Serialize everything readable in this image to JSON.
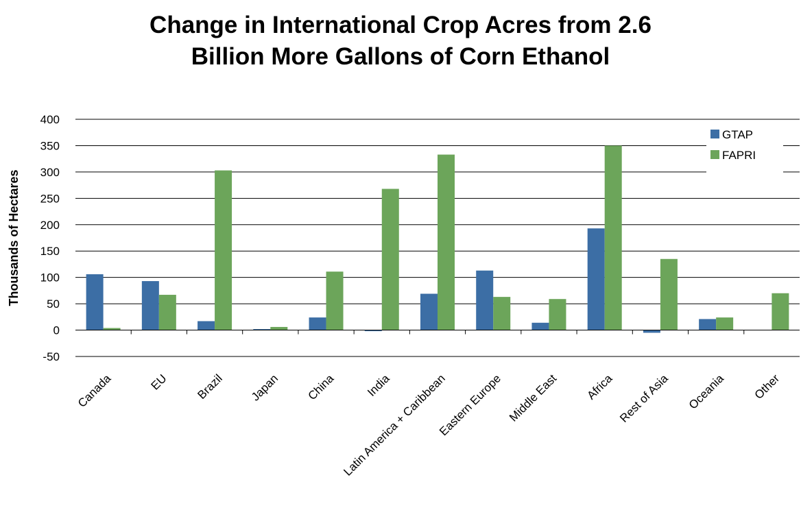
{
  "chart_data": {
    "type": "bar",
    "title_lines": [
      "Change in International Crop Acres from 2.6",
      "Billion More Gallons of Corn Ethanol"
    ],
    "ylabel": "Thousands of Hectares",
    "xlabel": "",
    "ylim": [
      -50,
      400
    ],
    "yticks": [
      400,
      350,
      300,
      250,
      200,
      150,
      100,
      50,
      0,
      -50
    ],
    "grid": true,
    "legend_position": "top-right",
    "categories": [
      "Canada",
      "EU",
      "Brazil",
      "Japan",
      "China",
      "India",
      "Latin America + Caribbean",
      "Eastern Europe",
      "Middle East",
      "Africa",
      "Rest of Asia",
      "Oceania",
      "Other"
    ],
    "series": [
      {
        "name": "GTAP",
        "color": "#3c6ea5",
        "values": [
          106,
          93,
          17,
          2,
          24,
          -2,
          69,
          113,
          14,
          193,
          -5,
          21,
          0
        ]
      },
      {
        "name": "FAPRI",
        "color": "#6ca55a",
        "values": [
          4,
          67,
          303,
          6,
          111,
          268,
          333,
          63,
          59,
          350,
          135,
          24,
          70
        ]
      }
    ]
  }
}
